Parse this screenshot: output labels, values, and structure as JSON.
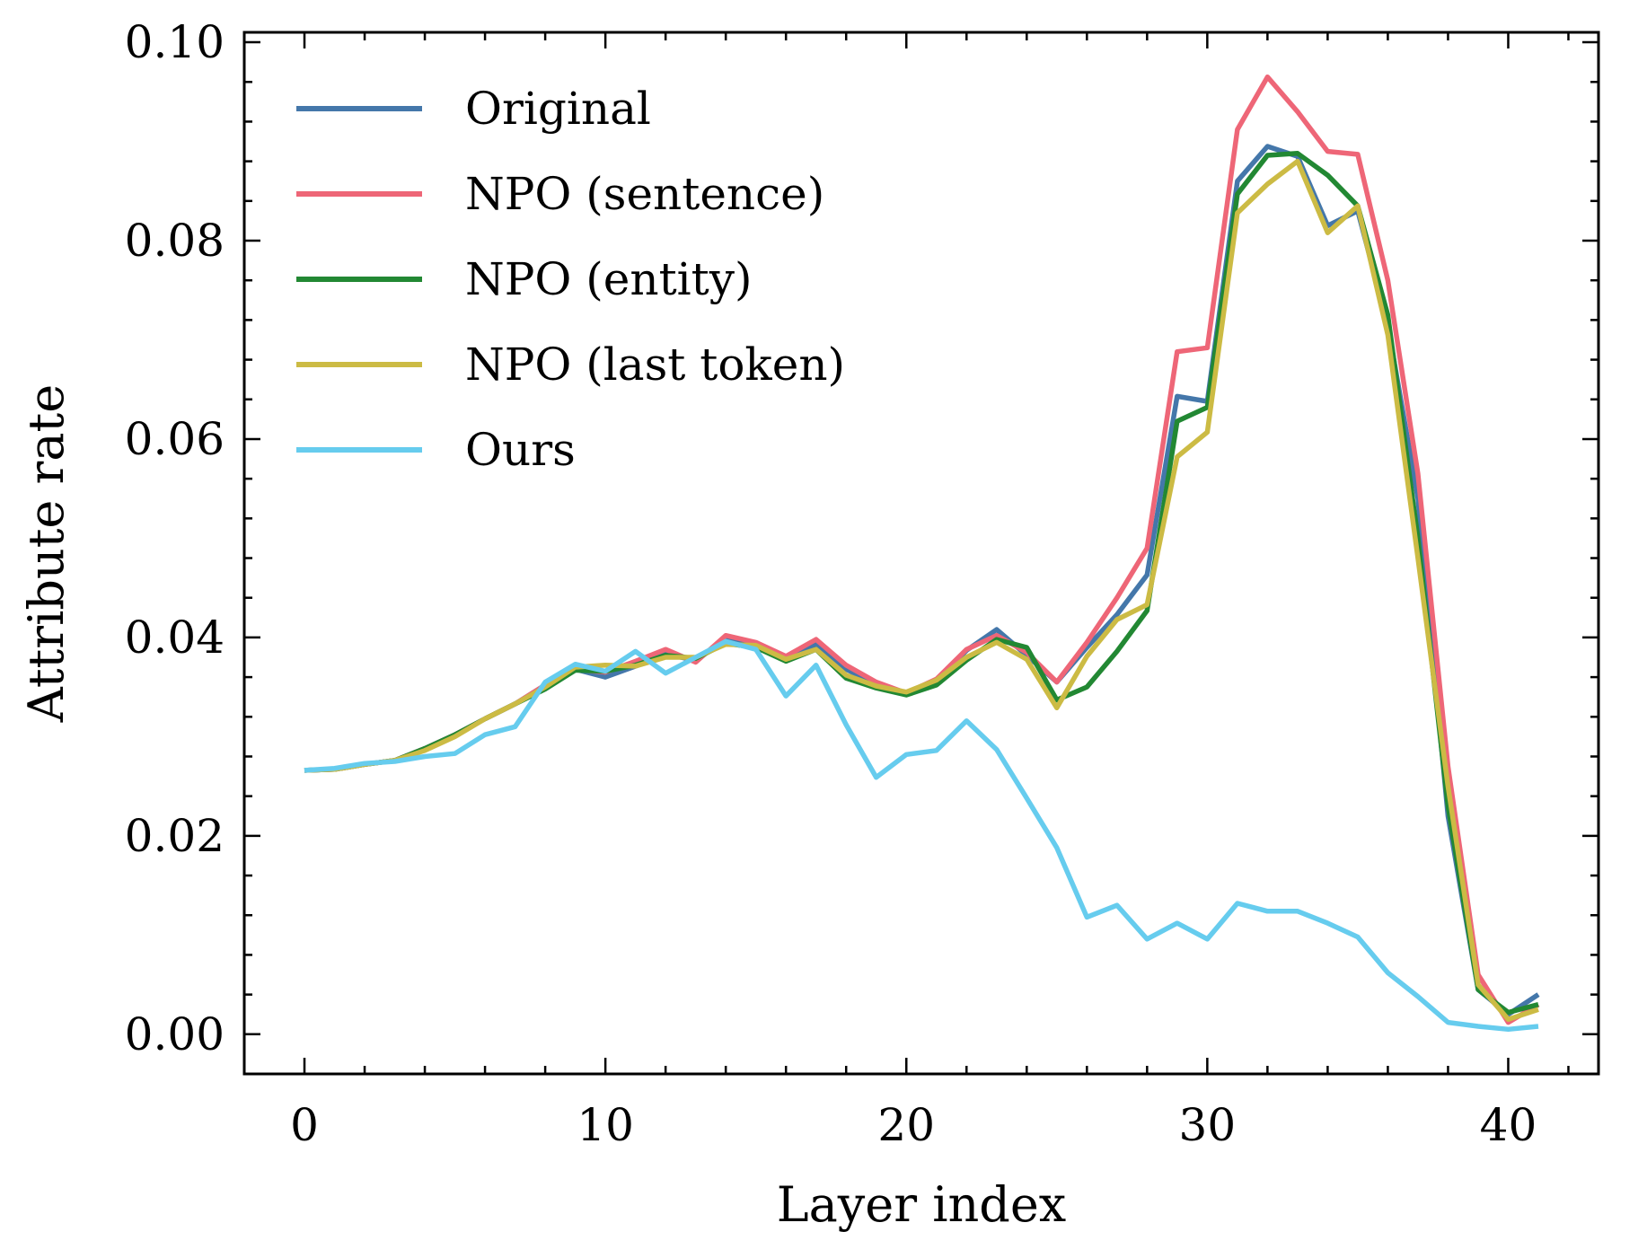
{
  "chart_data": {
    "type": "line",
    "title": "",
    "xlabel": "Layer index",
    "ylabel": "Attribute rate",
    "xlim": [
      -2,
      43
    ],
    "ylim": [
      -0.004,
      0.101
    ],
    "xticks": [
      0,
      10,
      20,
      30,
      40
    ],
    "xtick_labels": [
      "0",
      "10",
      "20",
      "30",
      "40"
    ],
    "yticks": [
      0.0,
      0.02,
      0.04,
      0.06,
      0.08,
      0.1
    ],
    "ytick_labels": [
      "0.00",
      "0.02",
      "0.04",
      "0.06",
      "0.08",
      "0.10"
    ],
    "grid": false,
    "legend_position": "top-left",
    "x": [
      0,
      1,
      2,
      3,
      4,
      5,
      6,
      7,
      8,
      9,
      10,
      11,
      12,
      13,
      14,
      15,
      16,
      17,
      18,
      19,
      20,
      21,
      22,
      23,
      24,
      25,
      26,
      27,
      28,
      29,
      30,
      31,
      32,
      33,
      34,
      35,
      36,
      37,
      38,
      39,
      40,
      41
    ],
    "series": [
      {
        "name": "Original",
        "color": "#4477aa",
        "values": [
          0.0266,
          0.0267,
          0.0272,
          0.0276,
          0.0288,
          0.0302,
          0.0318,
          0.0333,
          0.0352,
          0.0368,
          0.036,
          0.0371,
          0.0383,
          0.0377,
          0.0398,
          0.0392,
          0.0378,
          0.0393,
          0.0368,
          0.0353,
          0.0343,
          0.0356,
          0.0387,
          0.0408,
          0.0382,
          0.0355,
          0.039,
          0.0423,
          0.0463,
          0.0643,
          0.0638,
          0.086,
          0.0895,
          0.0885,
          0.0815,
          0.083,
          0.0715,
          0.054,
          0.022,
          0.0045,
          0.002,
          0.004
        ]
      },
      {
        "name": "NPO (sentence)",
        "color": "#ee6677",
        "values": [
          0.0266,
          0.0267,
          0.0272,
          0.0276,
          0.0288,
          0.0302,
          0.0318,
          0.0333,
          0.0352,
          0.0368,
          0.0365,
          0.0376,
          0.0388,
          0.0375,
          0.0402,
          0.0395,
          0.0381,
          0.0398,
          0.0372,
          0.0355,
          0.0344,
          0.0358,
          0.0388,
          0.0402,
          0.0385,
          0.0355,
          0.0395,
          0.044,
          0.049,
          0.0688,
          0.0692,
          0.0912,
          0.0965,
          0.093,
          0.089,
          0.0887,
          0.076,
          0.0565,
          0.027,
          0.006,
          0.0012,
          0.003
        ]
      },
      {
        "name": "NPO (entity)",
        "color": "#228833",
        "values": [
          0.0266,
          0.0267,
          0.0272,
          0.0276,
          0.0288,
          0.0302,
          0.0318,
          0.0333,
          0.0348,
          0.0367,
          0.0366,
          0.0372,
          0.0382,
          0.0379,
          0.0394,
          0.039,
          0.0376,
          0.0388,
          0.0359,
          0.0349,
          0.0342,
          0.0352,
          0.0377,
          0.0398,
          0.039,
          0.0337,
          0.035,
          0.0386,
          0.0427,
          0.0618,
          0.0632,
          0.0847,
          0.0886,
          0.0888,
          0.0866,
          0.0835,
          0.0725,
          0.05,
          0.023,
          0.0045,
          0.0022,
          0.003
        ]
      },
      {
        "name": "NPO (last token)",
        "color": "#ccbb44",
        "values": [
          0.0266,
          0.0267,
          0.0272,
          0.0276,
          0.0286,
          0.03,
          0.0318,
          0.0333,
          0.035,
          0.037,
          0.0372,
          0.0371,
          0.038,
          0.038,
          0.0393,
          0.0392,
          0.0378,
          0.0388,
          0.0362,
          0.0351,
          0.0345,
          0.0357,
          0.038,
          0.0395,
          0.0378,
          0.0329,
          0.0381,
          0.0418,
          0.0433,
          0.0582,
          0.0607,
          0.0828,
          0.0857,
          0.088,
          0.0808,
          0.0835,
          0.0705,
          0.048,
          0.025,
          0.005,
          0.0015,
          0.0025
        ]
      },
      {
        "name": "Ours",
        "color": "#66ccee",
        "values": [
          0.0266,
          0.0268,
          0.0273,
          0.0275,
          0.028,
          0.0283,
          0.0302,
          0.031,
          0.0355,
          0.0373,
          0.0366,
          0.0386,
          0.0364,
          0.038,
          0.0396,
          0.0388,
          0.0341,
          0.0372,
          0.0312,
          0.0259,
          0.0282,
          0.0286,
          0.0316,
          0.0287,
          0.0238,
          0.0188,
          0.0118,
          0.013,
          0.0096,
          0.0112,
          0.0096,
          0.0132,
          0.0124,
          0.0124,
          0.0112,
          0.0098,
          0.0062,
          0.0038,
          0.0012,
          0.0008,
          0.0005,
          0.0008
        ]
      }
    ]
  }
}
